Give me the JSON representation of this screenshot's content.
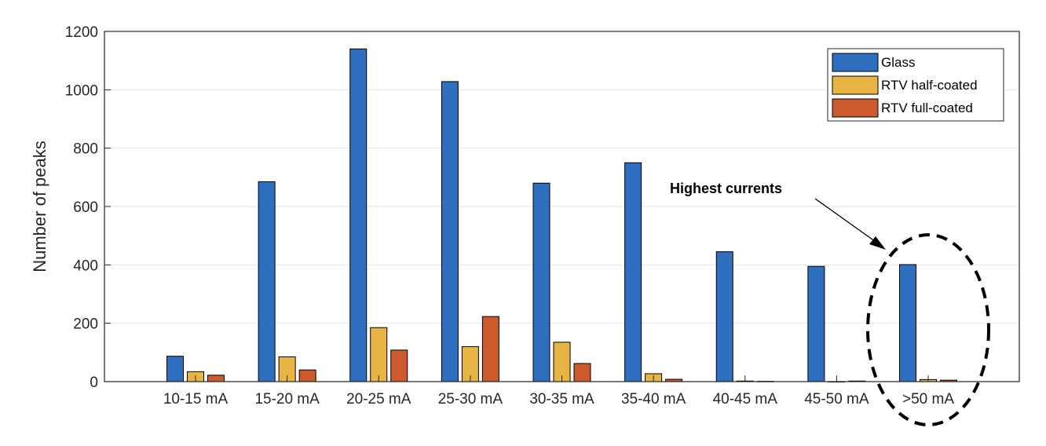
{
  "chart_data": {
    "type": "bar",
    "title": "",
    "xlabel": "",
    "ylabel": "Number of peaks",
    "ylim": [
      0,
      1200
    ],
    "yticks": [
      0,
      200,
      400,
      600,
      800,
      1000,
      1200
    ],
    "grid": "horizontal",
    "legend_position": "top-right",
    "categories": [
      "10-15 mA",
      "15-20 mA",
      "20-25 mA",
      "25-30 mA",
      "30-35 mA",
      "35-40 mA",
      "40-45 mA",
      "45-50 mA",
      ">50 mA"
    ],
    "series": [
      {
        "name": "Glass",
        "color": "#2E6FBF",
        "values": [
          87,
          685,
          1140,
          1028,
          680,
          750,
          445,
          395,
          401
        ]
      },
      {
        "name": "RTV half-coated",
        "color": "#E8B445",
        "values": [
          34,
          85,
          185,
          120,
          135,
          27,
          2,
          0,
          7
        ]
      },
      {
        "name": "RTV full-coated",
        "color": "#CD5A2D",
        "values": [
          22,
          40,
          108,
          223,
          62,
          8,
          1,
          2,
          5
        ]
      }
    ],
    "annotations": [
      {
        "text": "Highest currents",
        "target_category": ">50 mA",
        "shape": "dashed-ellipse"
      }
    ]
  }
}
